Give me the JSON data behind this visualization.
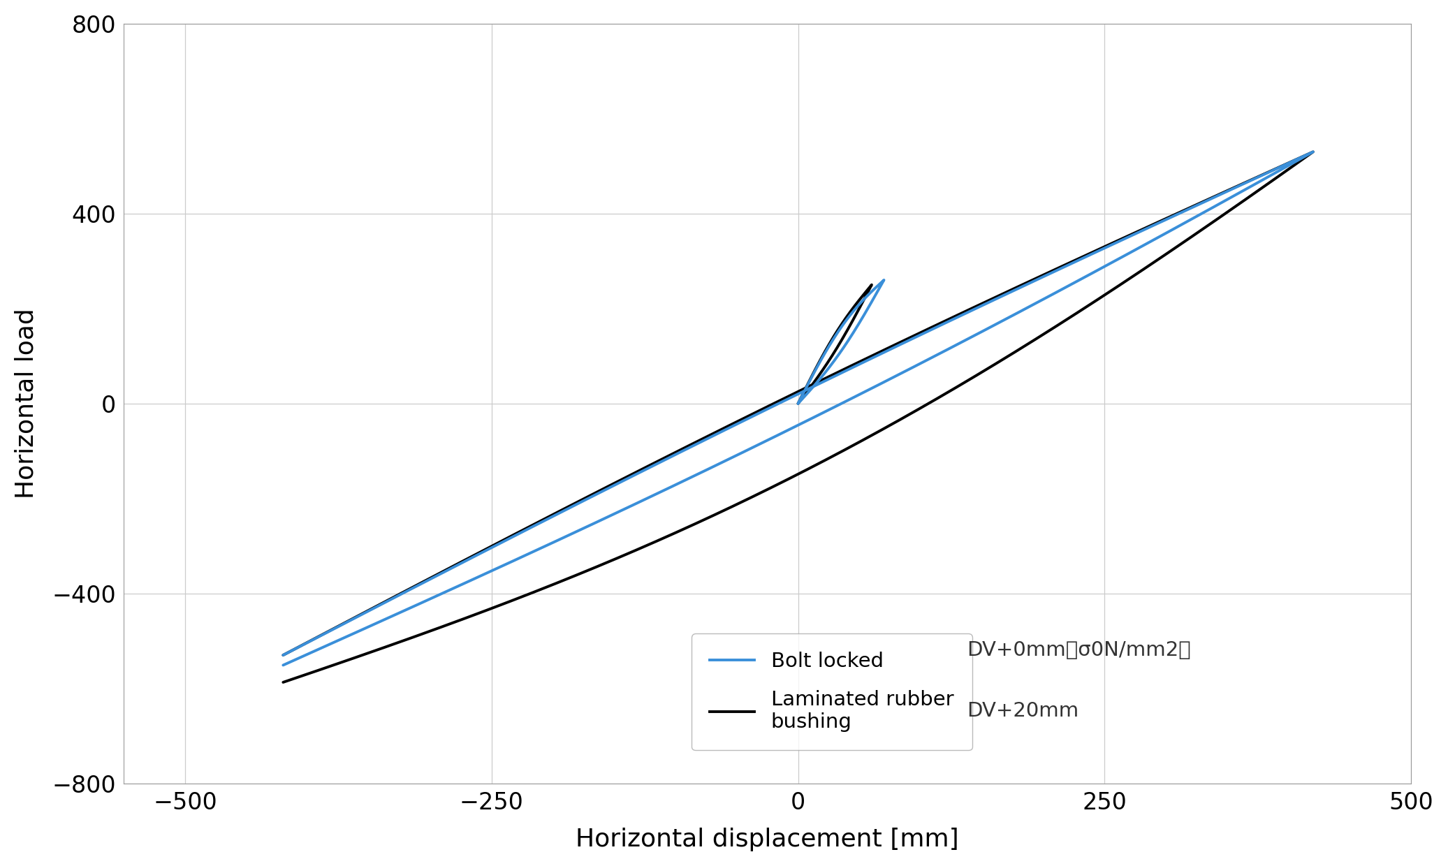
{
  "title": "",
  "xlabel": "Horizontal displacement [mm]",
  "ylabel": "Horizontal load",
  "xlim": [
    -550,
    500
  ],
  "ylim": [
    -800,
    800
  ],
  "xticks": [
    -500,
    -250,
    0,
    250,
    500
  ],
  "yticks": [
    -800,
    -400,
    0,
    400,
    800
  ],
  "background_color": "#ffffff",
  "plot_background": "#ffffff",
  "grid_color": "#cccccc",
  "blue_color": "#3a8fd9",
  "black_color": "#000000",
  "legend_label1": "Bolt locked",
  "legend_label2": "Laminated rubber\nbushing",
  "legend_desc1": "DV+0mm（σ0N/mm2）",
  "legend_desc2": "DV+20mm"
}
